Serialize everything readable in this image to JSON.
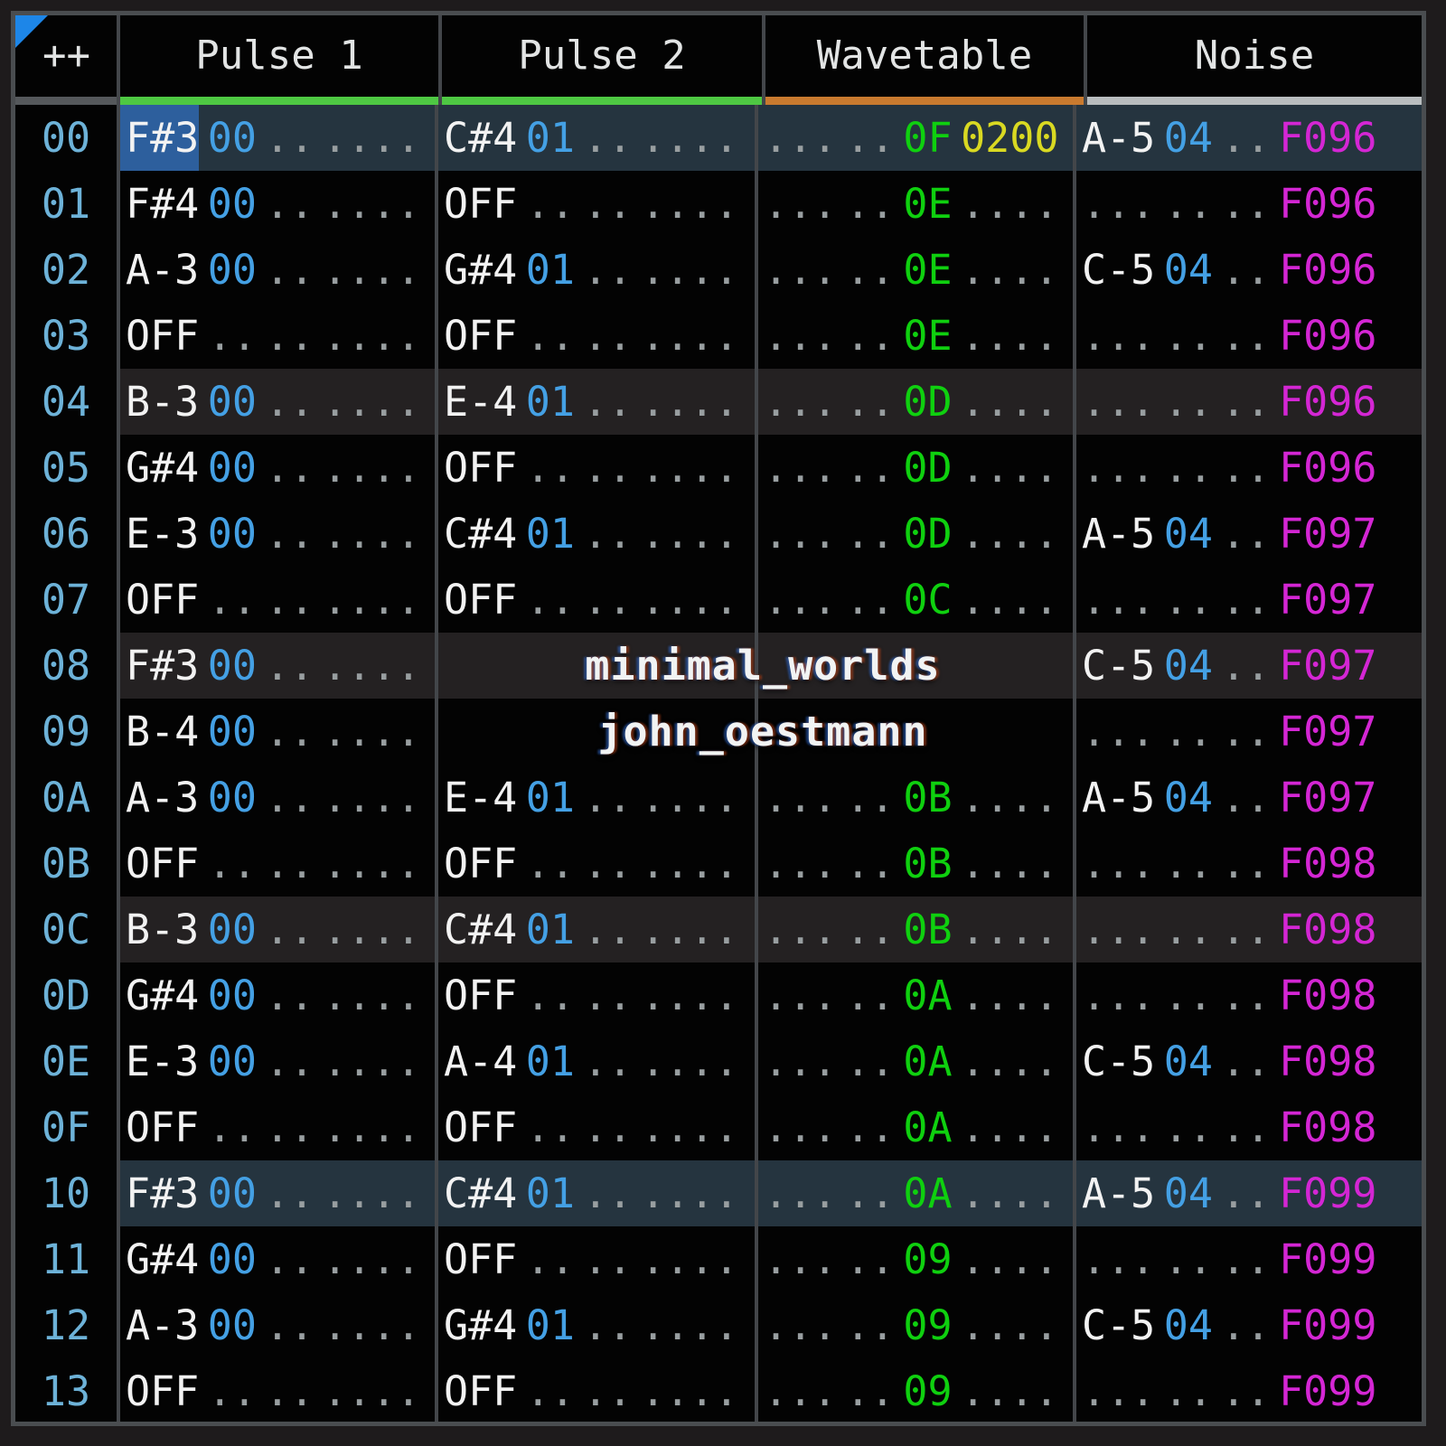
{
  "window": {
    "corner_label": "++"
  },
  "channels": [
    {
      "label": "Pulse 1",
      "underline": "#4ec843"
    },
    {
      "label": "Pulse 2",
      "underline": "#4ec843"
    },
    {
      "label": "Wavetable",
      "underline": "#c97a2f"
    },
    {
      "label": "Noise",
      "underline": "#b9bdbf"
    }
  ],
  "overlay": {
    "title": "minimal_worlds",
    "author": "john_oestmann"
  },
  "colors": {
    "note": "#f2f2f2",
    "instrument": "#44a0e4",
    "volume": "#0fd00f",
    "fx_pitch": "#d9d922",
    "fx_speed": "#d426d4",
    "row_index": "#6db2d8",
    "dots": "#989ea0",
    "hl_minor": "#242122",
    "hl_major": "#25343f",
    "cursor": "#2d5f9d",
    "corner_triangle": "#1d86e8",
    "corner_underline": "#55585b"
  },
  "pattern": {
    "cursor": {
      "row": 0,
      "channel": 0,
      "slot": "note"
    },
    "rows": [
      {
        "idx": "00",
        "hl": "major",
        "cells": [
          [
            "F#3",
            "00",
            "",
            ""
          ],
          [
            "C#4",
            "01",
            "",
            ""
          ],
          [
            "",
            "",
            "0F",
            "0200",
            "pitch"
          ],
          [
            "A-5",
            "04",
            "",
            "F096",
            "speed"
          ]
        ]
      },
      {
        "idx": "01",
        "hl": "none",
        "cells": [
          [
            "F#4",
            "00",
            "",
            ""
          ],
          [
            "OFF",
            "",
            "",
            ""
          ],
          [
            "",
            "",
            "0E",
            ""
          ],
          [
            "",
            "",
            "",
            "F096",
            "speed"
          ]
        ]
      },
      {
        "idx": "02",
        "hl": "none",
        "cells": [
          [
            "A-3",
            "00",
            "",
            ""
          ],
          [
            "G#4",
            "01",
            "",
            ""
          ],
          [
            "",
            "",
            "0E",
            ""
          ],
          [
            "C-5",
            "04",
            "",
            "F096",
            "speed"
          ]
        ]
      },
      {
        "idx": "03",
        "hl": "none",
        "cells": [
          [
            "OFF",
            "",
            "",
            ""
          ],
          [
            "OFF",
            "",
            "",
            ""
          ],
          [
            "",
            "",
            "0E",
            ""
          ],
          [
            "",
            "",
            "",
            "F096",
            "speed"
          ]
        ]
      },
      {
        "idx": "04",
        "hl": "minor",
        "cells": [
          [
            "B-3",
            "00",
            "",
            ""
          ],
          [
            "E-4",
            "01",
            "",
            ""
          ],
          [
            "",
            "",
            "0D",
            ""
          ],
          [
            "",
            "",
            "",
            "F096",
            "speed"
          ]
        ]
      },
      {
        "idx": "05",
        "hl": "none",
        "cells": [
          [
            "G#4",
            "00",
            "",
            ""
          ],
          [
            "OFF",
            "",
            "",
            ""
          ],
          [
            "",
            "",
            "0D",
            ""
          ],
          [
            "",
            "",
            "",
            "F096",
            "speed"
          ]
        ]
      },
      {
        "idx": "06",
        "hl": "none",
        "cells": [
          [
            "E-3",
            "00",
            "",
            ""
          ],
          [
            "C#4",
            "01",
            "",
            ""
          ],
          [
            "",
            "",
            "0D",
            ""
          ],
          [
            "A-5",
            "04",
            "",
            "F097",
            "speed"
          ]
        ]
      },
      {
        "idx": "07",
        "hl": "none",
        "cells": [
          [
            "OFF",
            "",
            "",
            ""
          ],
          [
            "OFF",
            "",
            "",
            ""
          ],
          [
            "",
            "",
            "0C",
            ""
          ],
          [
            "",
            "",
            "",
            "F097",
            "speed"
          ]
        ]
      },
      {
        "idx": "08",
        "hl": "minor",
        "cells": [
          [
            "F#3",
            "00",
            "",
            ""
          ],
          null,
          null,
          [
            "C-5",
            "04",
            "",
            "F097",
            "speed"
          ]
        ]
      },
      {
        "idx": "09",
        "hl": "none",
        "cells": [
          [
            "B-4",
            "00",
            "",
            ""
          ],
          null,
          null,
          [
            "",
            "",
            "",
            "F097",
            "speed"
          ]
        ]
      },
      {
        "idx": "0A",
        "hl": "none",
        "cells": [
          [
            "A-3",
            "00",
            "",
            ""
          ],
          [
            "E-4",
            "01",
            "",
            ""
          ],
          [
            "",
            "",
            "0B",
            ""
          ],
          [
            "A-5",
            "04",
            "",
            "F097",
            "speed"
          ]
        ]
      },
      {
        "idx": "0B",
        "hl": "none",
        "cells": [
          [
            "OFF",
            "",
            "",
            ""
          ],
          [
            "OFF",
            "",
            "",
            ""
          ],
          [
            "",
            "",
            "0B",
            ""
          ],
          [
            "",
            "",
            "",
            "F098",
            "speed"
          ]
        ]
      },
      {
        "idx": "0C",
        "hl": "minor",
        "cells": [
          [
            "B-3",
            "00",
            "",
            ""
          ],
          [
            "C#4",
            "01",
            "",
            ""
          ],
          [
            "",
            "",
            "0B",
            ""
          ],
          [
            "",
            "",
            "",
            "F098",
            "speed"
          ]
        ]
      },
      {
        "idx": "0D",
        "hl": "none",
        "cells": [
          [
            "G#4",
            "00",
            "",
            ""
          ],
          [
            "OFF",
            "",
            "",
            ""
          ],
          [
            "",
            "",
            "0A",
            ""
          ],
          [
            "",
            "",
            "",
            "F098",
            "speed"
          ]
        ]
      },
      {
        "idx": "0E",
        "hl": "none",
        "cells": [
          [
            "E-3",
            "00",
            "",
            ""
          ],
          [
            "A-4",
            "01",
            "",
            ""
          ],
          [
            "",
            "",
            "0A",
            ""
          ],
          [
            "C-5",
            "04",
            "",
            "F098",
            "speed"
          ]
        ]
      },
      {
        "idx": "0F",
        "hl": "none",
        "cells": [
          [
            "OFF",
            "",
            "",
            ""
          ],
          [
            "OFF",
            "",
            "",
            ""
          ],
          [
            "",
            "",
            "0A",
            ""
          ],
          [
            "",
            "",
            "",
            "F098",
            "speed"
          ]
        ]
      },
      {
        "idx": "10",
        "hl": "major",
        "cells": [
          [
            "F#3",
            "00",
            "",
            ""
          ],
          [
            "C#4",
            "01",
            "",
            ""
          ],
          [
            "",
            "",
            "0A",
            ""
          ],
          [
            "A-5",
            "04",
            "",
            "F099",
            "speed"
          ]
        ]
      },
      {
        "idx": "11",
        "hl": "none",
        "cells": [
          [
            "G#4",
            "00",
            "",
            ""
          ],
          [
            "OFF",
            "",
            "",
            ""
          ],
          [
            "",
            "",
            "09",
            ""
          ],
          [
            "",
            "",
            "",
            "F099",
            "speed"
          ]
        ]
      },
      {
        "idx": "12",
        "hl": "none",
        "cells": [
          [
            "A-3",
            "00",
            "",
            ""
          ],
          [
            "G#4",
            "01",
            "",
            ""
          ],
          [
            "",
            "",
            "09",
            ""
          ],
          [
            "C-5",
            "04",
            "",
            "F099",
            "speed"
          ]
        ]
      },
      {
        "idx": "13",
        "hl": "none",
        "cells": [
          [
            "OFF",
            "",
            "",
            ""
          ],
          [
            "OFF",
            "",
            "",
            ""
          ],
          [
            "",
            "",
            "09",
            ""
          ],
          [
            "",
            "",
            "",
            "F099",
            "speed"
          ]
        ]
      }
    ]
  }
}
